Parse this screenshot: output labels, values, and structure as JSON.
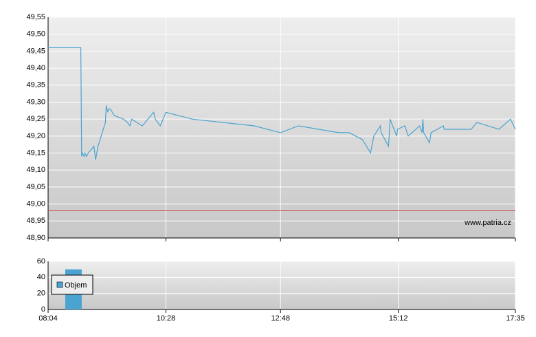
{
  "chart_data": [
    {
      "type": "line",
      "x": [
        484,
        524,
        525,
        526,
        528,
        529,
        531,
        533,
        540,
        542,
        545,
        554,
        555,
        557,
        558,
        560,
        565,
        576,
        581,
        584,
        586,
        599,
        606,
        613,
        615,
        621,
        628,
        660,
        736,
        768,
        790,
        839,
        852,
        868,
        878,
        882,
        890,
        891,
        900,
        902,
        905,
        910,
        911,
        920,
        924,
        938,
        941,
        942,
        943,
        950,
        952,
        967,
        968,
        1001,
        1008,
        1035,
        1049,
        1055
      ],
      "values": [
        49.46,
        49.46,
        49.14,
        49.15,
        49.14,
        49.15,
        49.14,
        49.15,
        49.17,
        49.13,
        49.17,
        49.24,
        49.29,
        49.27,
        49.28,
        49.28,
        49.26,
        49.25,
        49.24,
        49.23,
        49.25,
        49.23,
        49.25,
        49.27,
        49.25,
        49.23,
        49.27,
        49.25,
        49.23,
        49.21,
        49.23,
        49.21,
        49.21,
        49.19,
        49.15,
        49.2,
        49.23,
        49.21,
        49.17,
        49.25,
        49.23,
        49.2,
        49.22,
        49.23,
        49.2,
        49.23,
        49.21,
        49.25,
        49.21,
        49.18,
        49.21,
        49.23,
        49.22,
        49.22,
        49.24,
        49.22,
        49.25,
        49.22
      ],
      "color": "#4aa3d0",
      "reference_line": 48.98,
      "reference_color": "#cc4444",
      "xlim": [
        484,
        1055
      ],
      "ylim": [
        48.9,
        49.55
      ],
      "yticks": [
        {
          "value": 48.9,
          "label": "48,90"
        },
        {
          "value": 48.95,
          "label": "48,95"
        },
        {
          "value": 49.0,
          "label": "49,00"
        },
        {
          "value": 49.05,
          "label": "49,05"
        },
        {
          "value": 49.1,
          "label": "49,10"
        },
        {
          "value": 49.15,
          "label": "49,15"
        },
        {
          "value": 49.2,
          "label": "49,20"
        },
        {
          "value": 49.25,
          "label": "49,25"
        },
        {
          "value": 49.3,
          "label": "49,30"
        },
        {
          "value": 49.35,
          "label": "49,35"
        },
        {
          "value": 49.4,
          "label": "49,40"
        },
        {
          "value": 49.45,
          "label": "49,45"
        },
        {
          "value": 49.5,
          "label": "49,50"
        },
        {
          "value": 49.55,
          "label": "49,55"
        }
      ],
      "annotation": "www.patria.cz",
      "grid": true
    },
    {
      "type": "bar",
      "x": [
        515
      ],
      "series": [
        {
          "name": "Objem",
          "color": "#4aa3d0",
          "values": [
            50
          ]
        }
      ],
      "xlim": [
        484,
        1055
      ],
      "xticks": [
        {
          "value": 484,
          "label": "08:04"
        },
        {
          "value": 628,
          "label": "10:28"
        },
        {
          "value": 768,
          "label": "12:48"
        },
        {
          "value": 912,
          "label": "15:12"
        },
        {
          "value": 1055,
          "label": "17:35"
        }
      ],
      "ylim": [
        0,
        60
      ],
      "yticks": [
        0,
        20,
        40,
        60
      ],
      "legend": "center left",
      "grid": true
    }
  ]
}
